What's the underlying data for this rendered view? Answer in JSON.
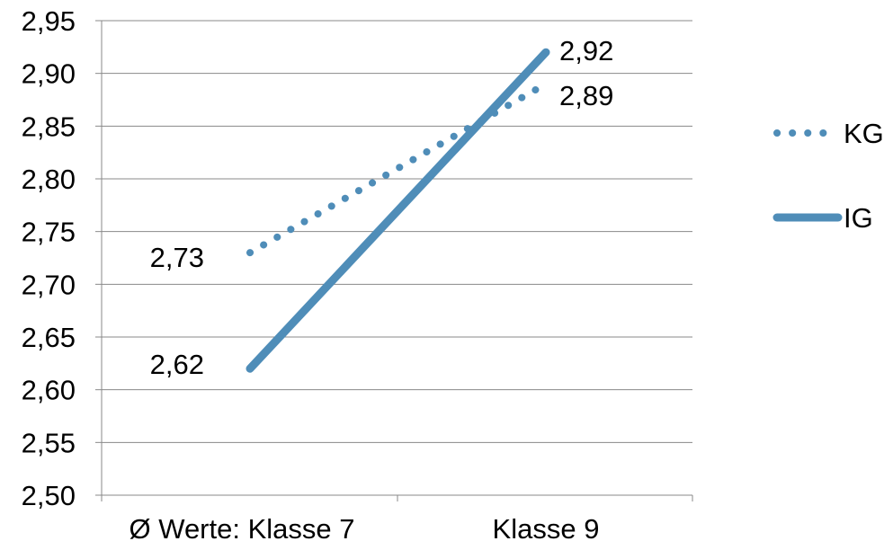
{
  "chart_data": {
    "type": "line",
    "categories": [
      "Ø Werte:  Klasse 7",
      "Klasse 9"
    ],
    "ylim": [
      2.5,
      2.95
    ],
    "y_ticks": [
      "2,50",
      "2,55",
      "2,60",
      "2,65",
      "2,70",
      "2,75",
      "2,80",
      "2,85",
      "2,90",
      "2,95"
    ],
    "y_tick_values": [
      2.5,
      2.55,
      2.6,
      2.65,
      2.7,
      2.75,
      2.8,
      2.85,
      2.9,
      2.95
    ],
    "grid": true,
    "legend_position": "right",
    "series": [
      {
        "name": "KG",
        "values": [
          2.73,
          2.89
        ],
        "labels": [
          "2,73",
          "2,89"
        ],
        "style": "dotted",
        "color": "#4f8db8"
      },
      {
        "name": "IG",
        "values": [
          2.62,
          2.92
        ],
        "labels": [
          "2,62",
          "2,92"
        ],
        "style": "solid",
        "color": "#4f8db8"
      }
    ]
  }
}
